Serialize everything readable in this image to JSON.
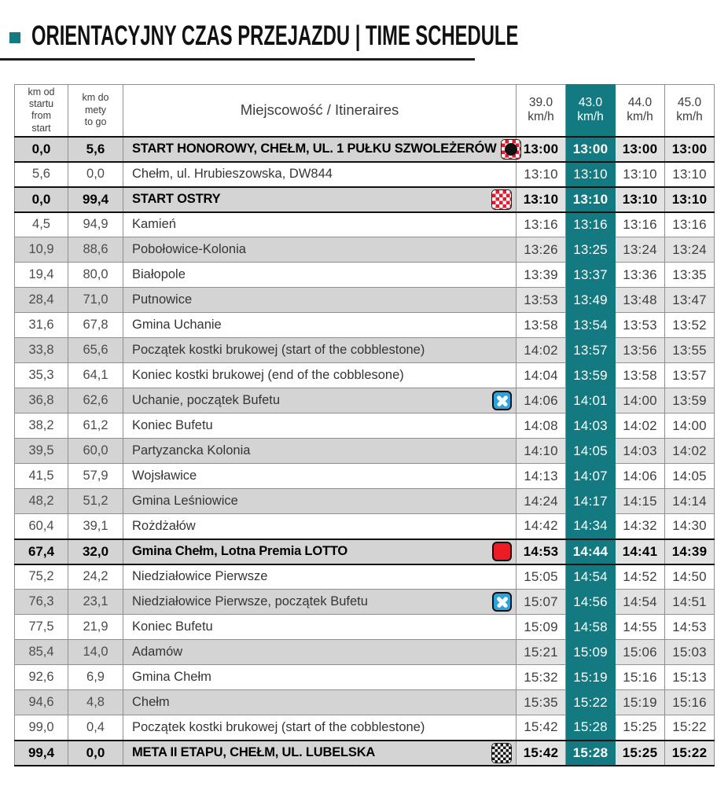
{
  "title": "ORIENTACYJNY CZAS PRZEJAZDU | TIME SCHEDULE",
  "colors": {
    "accent": "#127a80",
    "checker_red": "#e8192c",
    "lotto_red": "#ed1c24",
    "feed_blue": "#2aa3de",
    "row_gray": "#d4d4d4"
  },
  "header": {
    "km_from": "km od\nstartu\nfrom\nstart",
    "km_to": "km do\nmety\nto go",
    "place": "Miejscowość / Itineraires",
    "speeds": [
      "39.0\nkm/h",
      "43.0\nkm/h",
      "44.0\nkm/h",
      "45.0\nkm/h"
    ],
    "highlighted_speed": "43.0 km/h"
  },
  "table": {
    "rows": [
      {
        "km_from": "0,0",
        "km_to": "5,6",
        "place": "START HONOROWY, CHEŁM, UL. 1 PUŁKU SZWOLEŻERÓW",
        "icon": "start-honorowy-flag",
        "emphasis": true,
        "times": [
          "13:00",
          "13:00",
          "13:00",
          "13:00"
        ]
      },
      {
        "km_from": "5,6",
        "km_to": "0,0",
        "place": "Chełm, ul. Hrubieszowska, DW844",
        "icon": null,
        "emphasis": false,
        "times": [
          "13:10",
          "13:10",
          "13:10",
          "13:10"
        ]
      },
      {
        "km_from": "0,0",
        "km_to": "99,4",
        "place": "START OSTRY",
        "icon": "start-ostry-flag",
        "emphasis": true,
        "times": [
          "13:10",
          "13:10",
          "13:10",
          "13:10"
        ]
      },
      {
        "km_from": "4,5",
        "km_to": "94,9",
        "place": "Kamień",
        "icon": null,
        "emphasis": false,
        "times": [
          "13:16",
          "13:16",
          "13:16",
          "13:16"
        ]
      },
      {
        "km_from": "10,9",
        "km_to": "88,6",
        "place": "Pobołowice-Kolonia",
        "icon": null,
        "emphasis": false,
        "times": [
          "13:26",
          "13:25",
          "13:24",
          "13:24"
        ]
      },
      {
        "km_from": "19,4",
        "km_to": "80,0",
        "place": "Białopole",
        "icon": null,
        "emphasis": false,
        "times": [
          "13:39",
          "13:37",
          "13:36",
          "13:35"
        ]
      },
      {
        "km_from": "28,4",
        "km_to": "71,0",
        "place": "Putnowice",
        "icon": null,
        "emphasis": false,
        "times": [
          "13:53",
          "13:49",
          "13:48",
          "13:47"
        ]
      },
      {
        "km_from": "31,6",
        "km_to": "67,8",
        "place": "Gmina Uchanie",
        "icon": null,
        "emphasis": false,
        "times": [
          "13:58",
          "13:54",
          "13:53",
          "13:52"
        ]
      },
      {
        "km_from": "33,8",
        "km_to": "65,6",
        "place": "Początek kostki brukowej  (start of the cobblestone)",
        "icon": null,
        "emphasis": false,
        "times": [
          "14:02",
          "13:57",
          "13:56",
          "13:55"
        ]
      },
      {
        "km_from": "35,3",
        "km_to": "64,1",
        "place": "Koniec kostki brukowej (end of the cobblesone)",
        "icon": null,
        "emphasis": false,
        "times": [
          "14:04",
          "13:59",
          "13:58",
          "13:57"
        ]
      },
      {
        "km_from": "36,8",
        "km_to": "62,6",
        "place": "Uchanie, początek Bufetu",
        "icon": "feed-zone",
        "emphasis": false,
        "times": [
          "14:06",
          "14:01",
          "14:00",
          "13:59"
        ]
      },
      {
        "km_from": "38,2",
        "km_to": "61,2",
        "place": "Koniec Bufetu",
        "icon": null,
        "emphasis": false,
        "times": [
          "14:08",
          "14:03",
          "14:02",
          "14:00"
        ]
      },
      {
        "km_from": "39,5",
        "km_to": "60,0",
        "place": "Partyzancka Kolonia",
        "icon": null,
        "emphasis": false,
        "times": [
          "14:10",
          "14:05",
          "14:03",
          "14:02"
        ]
      },
      {
        "km_from": "41,5",
        "km_to": "57,9",
        "place": "Wojsławice",
        "icon": null,
        "emphasis": false,
        "times": [
          "14:13",
          "14:07",
          "14:06",
          "14:05"
        ]
      },
      {
        "km_from": "48,2",
        "km_to": "51,2",
        "place": "Gmina Leśniowice",
        "icon": null,
        "emphasis": false,
        "times": [
          "14:24",
          "14:17",
          "14:15",
          "14:14"
        ]
      },
      {
        "km_from": "60,4",
        "km_to": "39,1",
        "place": "Rożdżałów",
        "icon": null,
        "emphasis": false,
        "times": [
          "14:42",
          "14:34",
          "14:32",
          "14:30"
        ]
      },
      {
        "km_from": "67,4",
        "km_to": "32,0",
        "place": "Gmina Chełm, Lotna Premia LOTTO",
        "icon": "lotto-premia",
        "emphasis": true,
        "times": [
          "14:53",
          "14:44",
          "14:41",
          "14:39"
        ]
      },
      {
        "km_from": "75,2",
        "km_to": "24,2",
        "place": "Niedziałowice Pierwsze",
        "icon": null,
        "emphasis": false,
        "times": [
          "15:05",
          "14:54",
          "14:52",
          "14:50"
        ]
      },
      {
        "km_from": "76,3",
        "km_to": "23,1",
        "place": "Niedziałowice Pierwsze, początek Bufetu",
        "icon": "feed-zone",
        "emphasis": false,
        "times": [
          "15:07",
          "14:56",
          "14:54",
          "14:51"
        ]
      },
      {
        "km_from": "77,5",
        "km_to": "21,9",
        "place": "Koniec Bufetu",
        "icon": null,
        "emphasis": false,
        "times": [
          "15:09",
          "14:58",
          "14:55",
          "14:53"
        ]
      },
      {
        "km_from": "85,4",
        "km_to": "14,0",
        "place": "Adamów",
        "icon": null,
        "emphasis": false,
        "times": [
          "15:21",
          "15:09",
          "15:06",
          "15:03"
        ]
      },
      {
        "km_from": "92,6",
        "km_to": "6,9",
        "place": "Gmina Chełm",
        "icon": null,
        "emphasis": false,
        "times": [
          "15:32",
          "15:19",
          "15:16",
          "15:13"
        ]
      },
      {
        "km_from": "94,6",
        "km_to": "4,8",
        "place": "Chełm",
        "icon": null,
        "emphasis": false,
        "times": [
          "15:35",
          "15:22",
          "15:19",
          "15:16"
        ]
      },
      {
        "km_from": "99,0",
        "km_to": "0,4",
        "place": "Początek kostki brukowej (start of the cobblestone)",
        "icon": null,
        "emphasis": false,
        "times": [
          "15:42",
          "15:28",
          "15:25",
          "15:22"
        ]
      },
      {
        "km_from": "99,4",
        "km_to": "0,0",
        "place": "META II ETAPU, CHEŁM, UL. LUBELSKA",
        "icon": "finish-flag",
        "emphasis": true,
        "times": [
          "15:42",
          "15:28",
          "15:25",
          "15:22"
        ]
      }
    ]
  }
}
